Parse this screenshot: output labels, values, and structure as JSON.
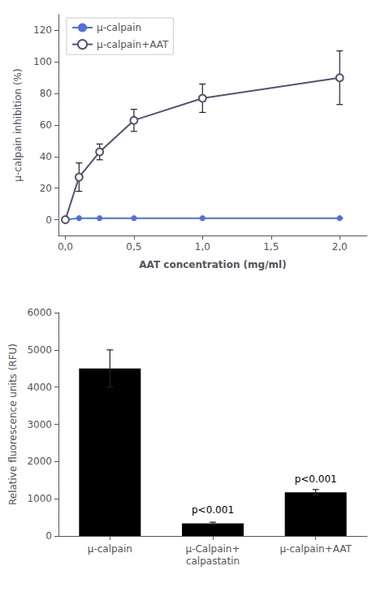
{
  "chart_data": [
    {
      "type": "line",
      "xlabel": "AAT concentration (mg/ml)",
      "ylabel": "μ-calpain inhibition (%)",
      "series": [
        {
          "name": "μ-calpain",
          "marker": "filled circle",
          "x": [
            0.0,
            0.1,
            0.25,
            0.5,
            1.0,
            2.0
          ],
          "values": [
            0,
            1,
            1,
            1,
            1,
            1
          ],
          "errors": [
            0,
            0,
            0,
            0,
            0,
            0
          ]
        },
        {
          "name": "μ-calpain+AAT",
          "marker": "open circle",
          "x": [
            0.0,
            0.1,
            0.25,
            0.5,
            1.0,
            2.0
          ],
          "values": [
            0,
            27,
            43,
            63,
            77,
            90
          ],
          "errors": [
            0,
            9,
            5,
            7,
            9,
            17
          ]
        }
      ],
      "xlim": [
        -0.05,
        2.2
      ],
      "ylim": [
        -10,
        130
      ],
      "xticks": [
        {
          "value": 0.0,
          "label": "0,0"
        },
        {
          "value": 0.5,
          "label": "0,5"
        },
        {
          "value": 1.0,
          "label": "1,0"
        },
        {
          "value": 1.5,
          "label": "1,5"
        },
        {
          "value": 2.0,
          "label": "2,0"
        }
      ],
      "yticks": [
        0,
        20,
        40,
        60,
        80,
        100,
        120
      ],
      "legend": "upper left",
      "grid": false
    },
    {
      "type": "bar",
      "ylabel": "Relative fluorescence units (RFU)",
      "categories": [
        "μ-calpain",
        "μ-Calpain+\ncalpastatin",
        "μ-calpain+AAT"
      ],
      "values": [
        4500,
        340,
        1175
      ],
      "errors": [
        500,
        30,
        75
      ],
      "color": "#000000",
      "ylim": [
        0,
        6000
      ],
      "yticks": [
        0,
        1000,
        2000,
        3000,
        4000,
        5000,
        6000
      ],
      "annotations": [
        {
          "text": "p<0.001",
          "x": "μ-Calpain+\ncalpastatin",
          "y": 560
        },
        {
          "text": "p<0.001",
          "x": "μ-calpain+AAT",
          "y": 1390
        }
      ],
      "grid": false
    }
  ]
}
